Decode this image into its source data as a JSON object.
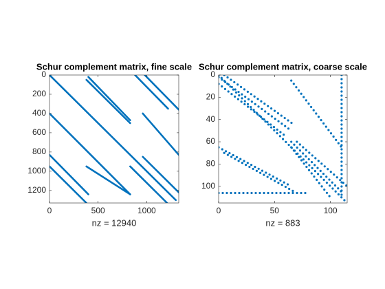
{
  "chart_data": [
    {
      "type": "spy",
      "title": "Schur complement matrix, fine scale",
      "xlabel": "nz = 12940",
      "xlim": [
        0,
        1330
      ],
      "ylim": [
        0,
        1330
      ],
      "xticks": [
        0,
        500,
        1000
      ],
      "yticks": [
        0,
        200,
        400,
        600,
        800,
        1000,
        1200
      ],
      "marker": "solid",
      "color": "#0072bd",
      "series": [
        {
          "x": [
            0,
            1300
          ],
          "values": [
            0,
            1300
          ]
        },
        {
          "x": [
            880,
            1220
          ],
          "values": [
            0,
            350
          ]
        },
        {
          "x": [
            980,
            1330
          ],
          "values": [
            0,
            360
          ]
        },
        {
          "x": [
            380,
            830
          ],
          "values": [
            50,
            500
          ]
        },
        {
          "x": [
            400,
            830
          ],
          "values": [
            20,
            470
          ]
        },
        {
          "x": [
            0,
            830
          ],
          "values": [
            400,
            1240
          ]
        },
        {
          "x": [
            380,
            830
          ],
          "values": [
            950,
            1240
          ]
        },
        {
          "x": [
            960,
            1330
          ],
          "values": [
            400,
            830
          ]
        },
        {
          "x": [
            960,
            1330
          ],
          "values": [
            850,
            1220
          ]
        },
        {
          "x": [
            0,
            400
          ],
          "values": [
            830,
            1240
          ]
        },
        {
          "x": [
            0,
            380
          ],
          "values": [
            950,
            1330
          ]
        },
        {
          "x": [
            830,
            1210
          ],
          "values": [
            950,
            1330
          ]
        }
      ]
    },
    {
      "type": "spy",
      "title": "Schur complement matrix, coarse scale",
      "xlabel": "nz = 883",
      "xlim": [
        0,
        115
      ],
      "ylim": [
        0,
        115
      ],
      "xticks": [
        0,
        50,
        100
      ],
      "yticks": [
        0,
        20,
        40,
        60,
        80,
        100
      ],
      "marker": "dotted",
      "color": "#0072bd",
      "series": [
        {
          "x": [
            0,
            115
          ],
          "values": [
            0,
            115
          ]
        },
        {
          "x": [
            0,
            65
          ],
          "values": [
            2,
            50
          ]
        },
        {
          "x": [
            5,
            68
          ],
          "values": [
            0,
            45
          ]
        },
        {
          "x": [
            0,
            60
          ],
          "values": [
            8,
            55
          ]
        },
        {
          "x": [
            65,
            110
          ],
          "values": [
            60,
            105
          ]
        },
        {
          "x": [
            70,
            115
          ],
          "values": [
            60,
            100
          ]
        },
        {
          "x": [
            65,
            100
          ],
          "values": [
            65,
            110
          ]
        },
        {
          "x": [
            65,
            110
          ],
          "values": [
            5,
            65
          ]
        },
        {
          "x": [
            0,
            65
          ],
          "values": [
            65,
            100
          ]
        },
        {
          "x": [
            5,
            68
          ],
          "values": [
            70,
            105
          ]
        },
        {
          "x": [
            0,
            80
          ],
          "values": [
            106,
            106
          ]
        },
        {
          "x": [
            110,
            110
          ],
          "values": [
            0,
            110
          ]
        }
      ]
    }
  ]
}
